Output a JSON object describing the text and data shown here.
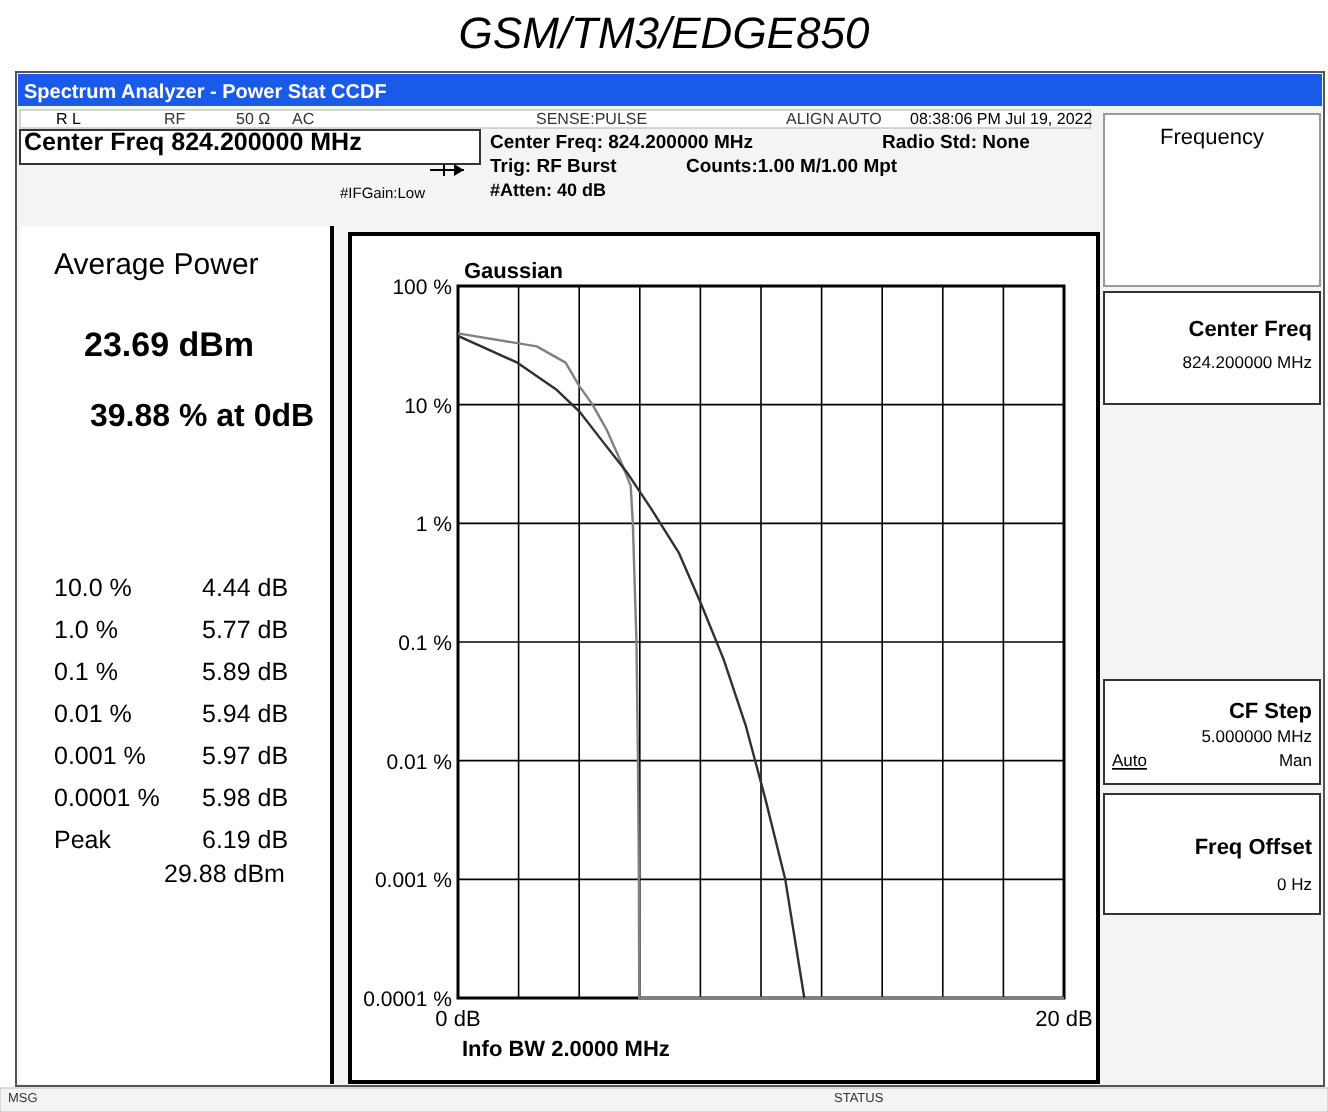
{
  "chart_data": {
    "type": "line",
    "title": "GSM/TM3/EDGE850",
    "annotations": [
      "Spectrum Analyzer - Power Stat CCDF",
      "R L",
      "RF",
      "50 Ω",
      "AC",
      "SENSE:PULSE",
      "ALIGN AUTO",
      "08:38:06 PM Jul 19, 2022",
      "Center Freq 824.200000 MHz",
      "Center Freq: 824.200000 MHz",
      "Radio Std: None",
      "Trig: RF Burst",
      "Counts:1.00 M/1.00 Mpt",
      "#Atten: 40 dB",
      "#IFGain:Low",
      "Average Power",
      "23.69 dBm",
      "39.88 % at 0dB",
      "10.0 %",
      "4.44 dB",
      "1.0 %",
      "5.77 dB",
      "0.1 %",
      "5.89 dB",
      "0.01 %",
      "5.94 dB",
      "0.001 %",
      "5.97 dB",
      "0.0001 %",
      "5.98 dB",
      "Peak",
      "6.19 dB",
      "29.88 dBm",
      "Gaussian",
      "Info BW 2.0000 MHz",
      "Frequency",
      "Center Freq",
      "824.200000 MHz",
      "CF Step",
      "5.000000 MHz",
      "Auto",
      "Man",
      "Freq Offset",
      "0 Hz",
      "MSG",
      "STATUS"
    ],
    "series": [
      {
        "color": "#808080",
        "x": [
          0,
          2.6,
          3.55,
          4.0,
          4.44,
          4.9,
          5.45,
          5.7,
          5.77,
          5.89,
          5.94,
          5.97,
          5.98,
          6.19,
          20
        ],
        "values": [
          39.88,
          31,
          22.6,
          14.4,
          10,
          6.2,
          3.0,
          2.07,
          1,
          0.1,
          0.01,
          0.001,
          0.0001,
          0.0001,
          0.0001
        ]
      },
      {
        "color": "#303030",
        "x": [
          0,
          1.96,
          3.23,
          4.0,
          4.72,
          5.57,
          6.4,
          7.28,
          8.02,
          8.77,
          9.5,
          10.15,
          10.8,
          11.43
        ],
        "values": [
          38,
          22.6,
          13.5,
          8.8,
          5.1,
          2.7,
          1.3,
          0.57,
          0.21,
          0.071,
          0.0196,
          0.0047,
          0.001,
          0.0001
        ]
      }
    ],
    "xlim": [
      0,
      20
    ],
    "xticks": [
      {
        "value": 0,
        "label": "0 dB"
      },
      {
        "value": 2,
        "label": null
      },
      {
        "value": 4,
        "label": null
      },
      {
        "value": 6,
        "label": null
      },
      {
        "value": 8,
        "label": null
      },
      {
        "value": 10,
        "label": null
      },
      {
        "value": 12,
        "label": null
      },
      {
        "value": 14,
        "label": null
      },
      {
        "value": 16,
        "label": null
      },
      {
        "value": 18,
        "label": null
      },
      {
        "value": 20,
        "label": "20 dB"
      }
    ],
    "ylim": [
      0.0001,
      100
    ],
    "yticks": [
      {
        "value": 100,
        "label": "100 %"
      },
      {
        "value": 10,
        "label": "10 %"
      },
      {
        "value": 1,
        "label": "1 %"
      },
      {
        "value": 0.1,
        "label": "0.1 %"
      },
      {
        "value": 0.01,
        "label": "0.01 %"
      },
      {
        "value": 0.001,
        "label": "0.001 %"
      },
      {
        "value": 0.0001,
        "label": "0.0001 %"
      }
    ],
    "log": true,
    "grid": true,
    "marker": "none",
    "line_style": "solid"
  }
}
